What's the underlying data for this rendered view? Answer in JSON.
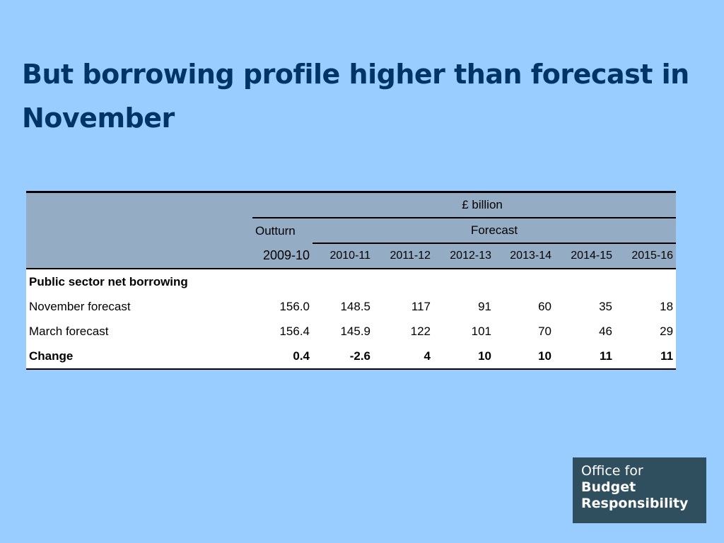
{
  "slide": {
    "title": "But borrowing profile higher than forecast in November"
  },
  "table": {
    "unit_label": "£ billion",
    "outturn_label": "Outturn",
    "forecast_label": "Forecast",
    "years": [
      "2009-10",
      "2010-11",
      "2011-12",
      "2012-13",
      "2013-14",
      "2014-15",
      "2015-16"
    ],
    "section_label": "Public sector net borrowing",
    "rows": [
      {
        "label": "November forecast",
        "values": [
          "156.0",
          "148.5",
          "117",
          "91",
          "60",
          "35",
          "18"
        ]
      },
      {
        "label": "March forecast",
        "values": [
          "156.4",
          "145.9",
          "122",
          "101",
          "70",
          "46",
          "29"
        ]
      },
      {
        "label": "Change",
        "values": [
          "0.4",
          "-2.6",
          "4",
          "10",
          "10",
          "11",
          "11"
        ]
      }
    ]
  },
  "logo": {
    "line1": "Office for",
    "line2": "Budget",
    "line3": "Responsibility"
  }
}
